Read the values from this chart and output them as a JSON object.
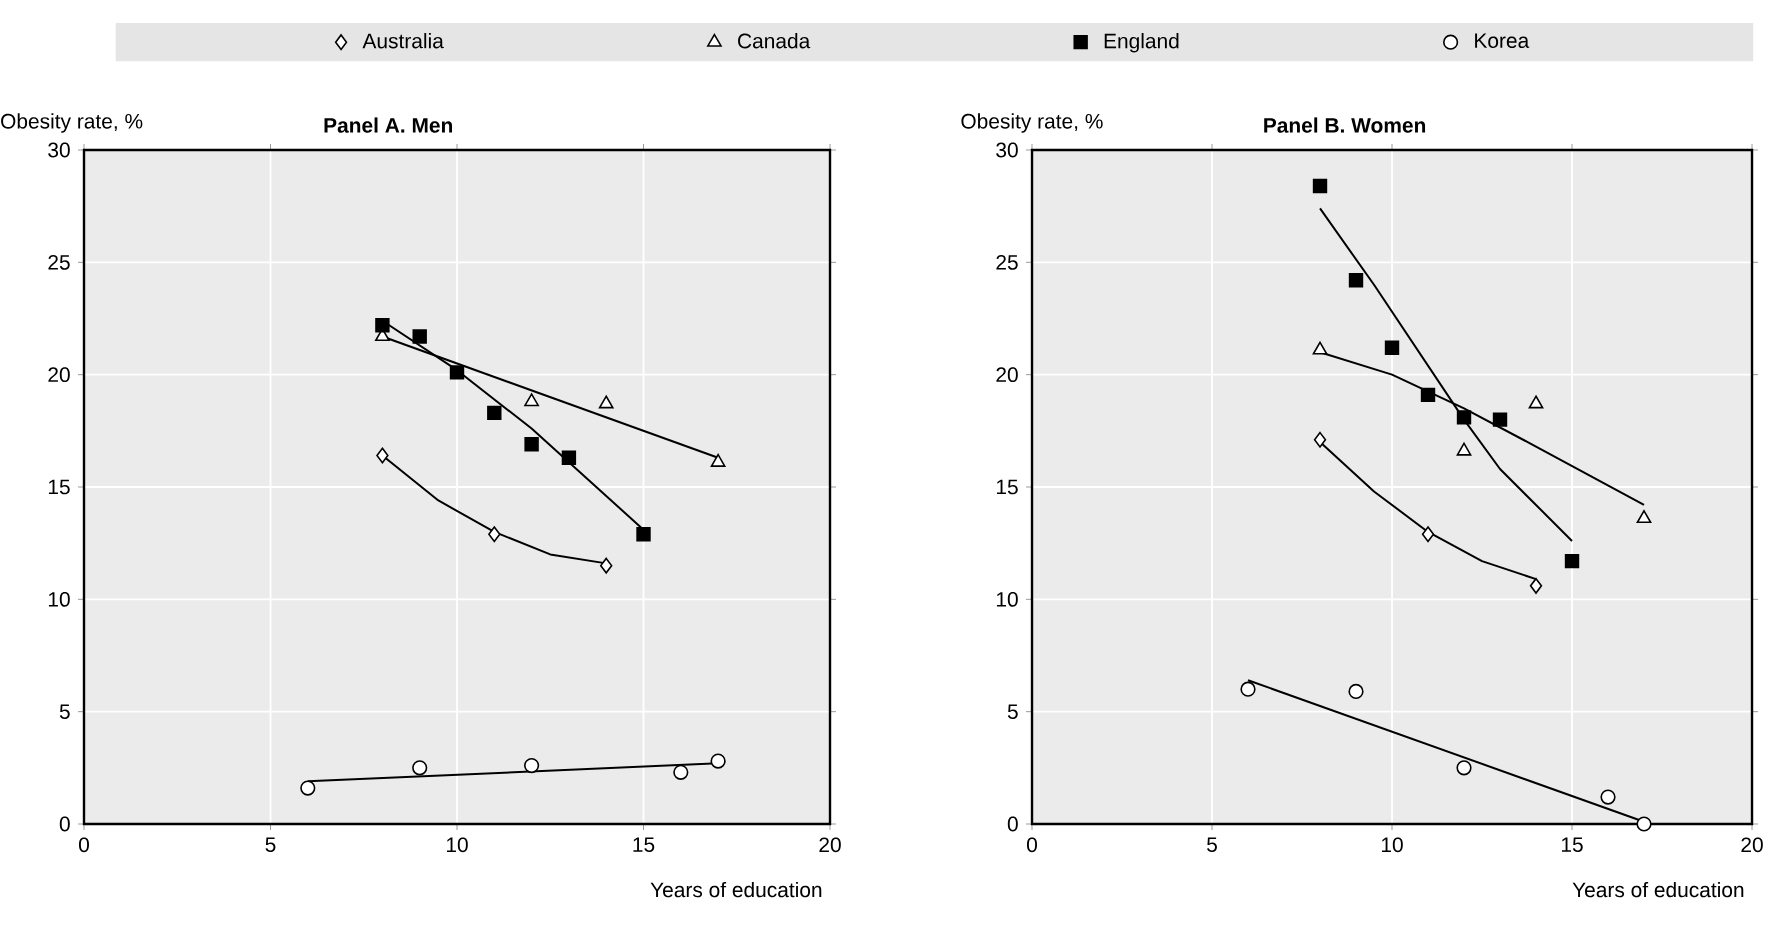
{
  "chart_data": [
    {
      "type": "scatter",
      "title": "Panel A. Men",
      "xlabel": "Years of education",
      "ylabel": "Obesity rate, %",
      "xlim": [
        0,
        20
      ],
      "ylim": [
        0,
        30
      ],
      "xticks": [
        0,
        5,
        10,
        15,
        20
      ],
      "yticks": [
        0,
        5,
        10,
        15,
        20,
        25,
        30
      ],
      "grid": true,
      "legend": "top",
      "series": [
        {
          "type": "line",
          "marker": "none",
          "color": "#000000",
          "x": [
            8,
            9.5,
            11,
            12.5,
            14
          ],
          "values": [
            16.4,
            14.4,
            13.0,
            12.0,
            11.6
          ]
        },
        {
          "type": "line",
          "marker": "none",
          "color": "#000000",
          "x": [
            8,
            17
          ],
          "values": [
            21.7,
            16.3
          ]
        },
        {
          "type": "line",
          "marker": "none",
          "color": "#000000",
          "x": [
            8,
            10,
            12,
            15
          ],
          "values": [
            22.4,
            20.2,
            17.6,
            13.1
          ]
        },
        {
          "type": "line",
          "marker": "none",
          "color": "#000000",
          "x": [
            6,
            17
          ],
          "values": [
            1.9,
            2.7
          ]
        },
        {
          "name": "Australia",
          "marker": "diamond",
          "color": "#ffffff",
          "x": [
            8,
            11,
            14
          ],
          "values": [
            16.4,
            12.9,
            11.5
          ]
        },
        {
          "name": "Canada",
          "marker": "triangle",
          "color": "#ffffff",
          "x": [
            8,
            12,
            14,
            17
          ],
          "values": [
            21.7,
            18.8,
            18.7,
            16.1
          ]
        },
        {
          "name": "England",
          "marker": "square",
          "color": "#000000",
          "x": [
            8,
            9,
            10,
            11,
            12,
            13,
            15
          ],
          "values": [
            22.2,
            21.7,
            20.1,
            18.3,
            16.9,
            16.3,
            12.9
          ]
        },
        {
          "name": "Korea",
          "marker": "circle",
          "color": "#ffffff",
          "x": [
            6,
            9,
            12,
            16,
            17
          ],
          "values": [
            1.6,
            2.5,
            2.6,
            2.3,
            2.8
          ]
        }
      ]
    },
    {
      "type": "scatter",
      "title": "Panel B. Women",
      "xlabel": "Years of education",
      "ylabel": "Obesity rate, %",
      "xlim": [
        0,
        20
      ],
      "ylim": [
        0,
        30
      ],
      "xticks": [
        0,
        5,
        10,
        15,
        20
      ],
      "yticks": [
        0,
        5,
        10,
        15,
        20,
        25,
        30
      ],
      "grid": true,
      "legend": "top",
      "series": [
        {
          "type": "line",
          "marker": "none",
          "color": "#000000",
          "x": [
            8,
            9.5,
            11,
            12.5,
            14
          ],
          "values": [
            17.0,
            14.8,
            13.0,
            11.7,
            10.9
          ]
        },
        {
          "type": "line",
          "marker": "none",
          "color": "#000000",
          "x": [
            8,
            10,
            12,
            14,
            17
          ],
          "values": [
            21.0,
            20.0,
            18.5,
            16.8,
            14.2
          ]
        },
        {
          "type": "line",
          "marker": "none",
          "color": "#000000",
          "x": [
            8,
            9.5,
            11,
            12,
            13,
            15
          ],
          "values": [
            27.4,
            24.0,
            20.4,
            18.0,
            15.8,
            12.6
          ]
        },
        {
          "type": "line",
          "marker": "none",
          "color": "#000000",
          "x": [
            6,
            17
          ],
          "values": [
            6.4,
            0.1
          ]
        },
        {
          "name": "Australia",
          "marker": "diamond",
          "color": "#ffffff",
          "x": [
            8,
            11,
            14
          ],
          "values": [
            17.1,
            12.9,
            10.6
          ]
        },
        {
          "name": "Canada",
          "marker": "triangle",
          "color": "#ffffff",
          "x": [
            8,
            12,
            14,
            17
          ],
          "values": [
            21.1,
            16.6,
            18.7,
            13.6
          ]
        },
        {
          "name": "England",
          "marker": "square",
          "color": "#000000",
          "x": [
            8,
            9,
            10,
            11,
            12,
            13,
            15
          ],
          "values": [
            28.4,
            24.2,
            21.2,
            19.1,
            18.1,
            18.0,
            11.7
          ]
        },
        {
          "name": "Korea",
          "marker": "circle",
          "color": "#ffffff",
          "x": [
            6,
            9,
            12,
            16,
            17
          ],
          "values": [
            6.0,
            5.9,
            2.5,
            1.2,
            0.0
          ]
        }
      ]
    }
  ]
}
